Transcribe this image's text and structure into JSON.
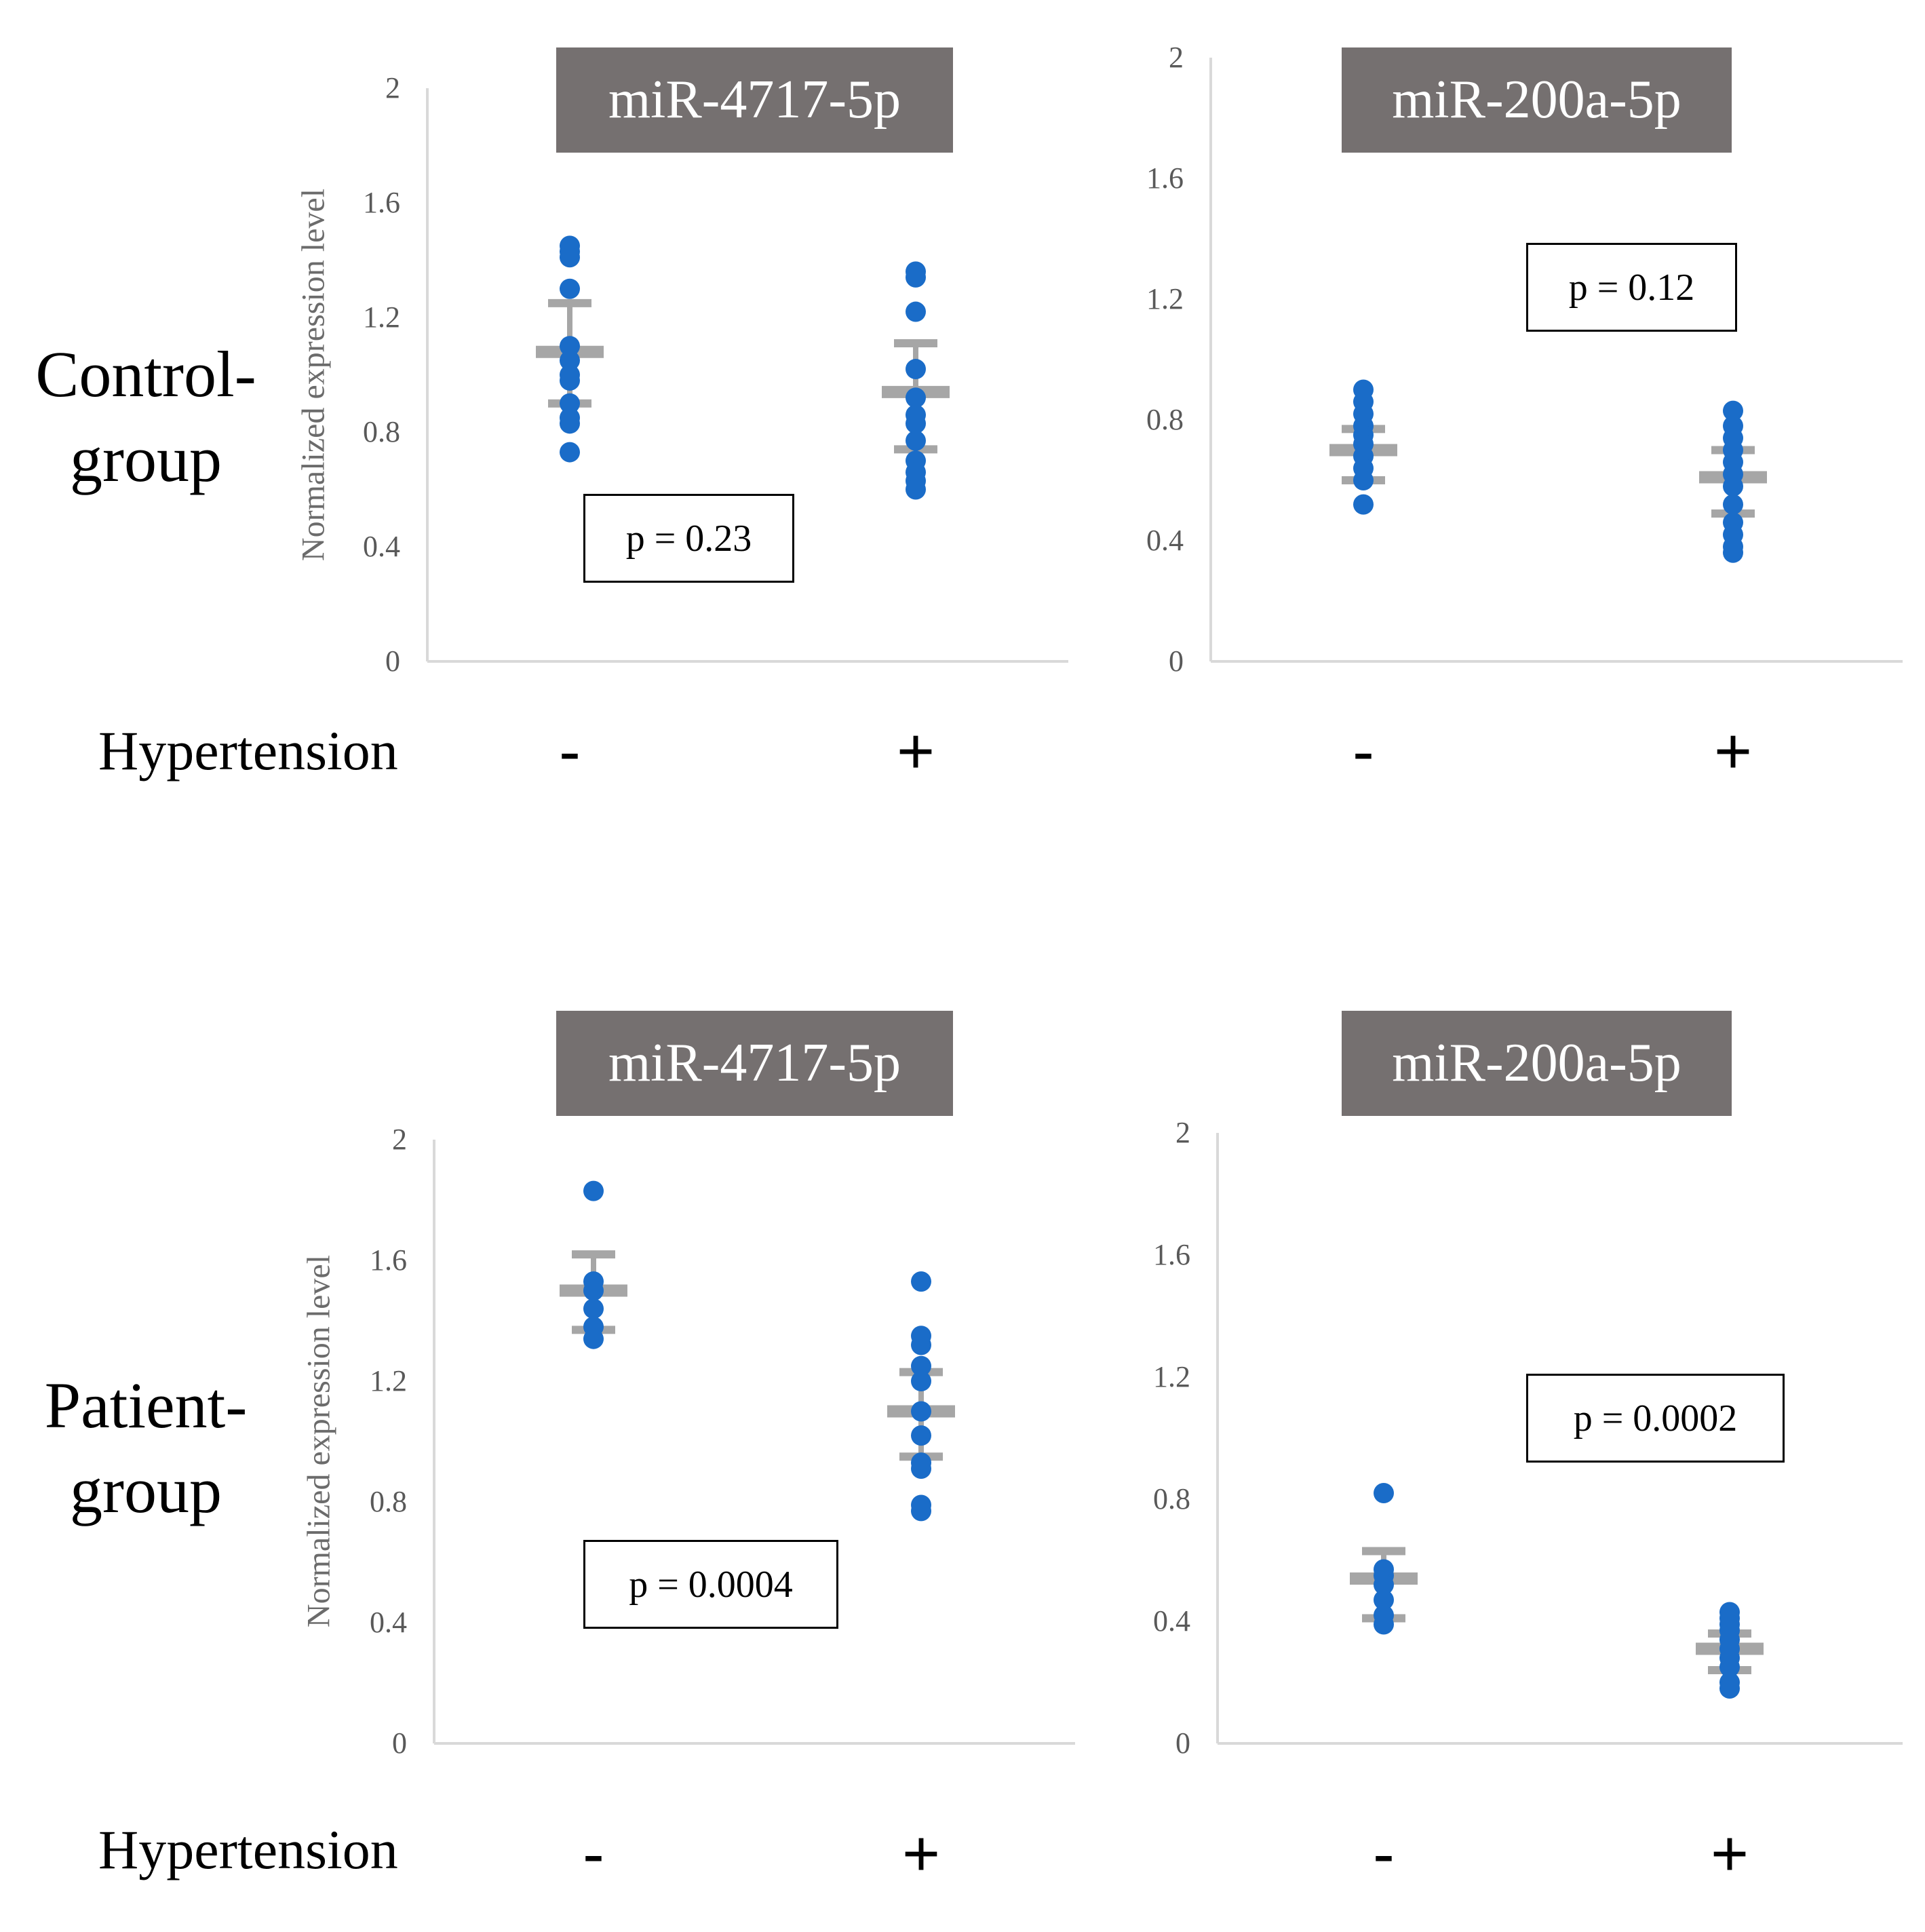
{
  "row_labels": [
    "Control-\ngroup",
    "Patient-\ngroup"
  ],
  "row_label_lines": [
    [
      "Control-",
      "group"
    ],
    [
      "Patient-",
      "group"
    ]
  ],
  "hypertension_label": "Hypertension",
  "colors": {
    "dot": "#1a6cc8",
    "mean": "#a6a6a6",
    "title_bg": "#757070",
    "axis": "#d9d9d9"
  },
  "chart_data": [
    {
      "type": "scatter",
      "title": "miR-4717-5p",
      "ylabel": "Normalized expression level",
      "ylim": [
        0,
        2
      ],
      "yticks": [
        "0",
        "0.4",
        "0.8",
        "1.2",
        "1.6",
        "2"
      ],
      "categories": [
        "-",
        "+"
      ],
      "p_value": "p = 0.23",
      "groups": [
        {
          "name": "-",
          "points": [
            1.45,
            1.43,
            1.41,
            1.3,
            1.1,
            1.05,
            1.0,
            0.98,
            0.9,
            0.85,
            0.83,
            0.73
          ],
          "mean": 1.08,
          "error_high": 1.25,
          "error_low": 0.9
        },
        {
          "name": "+",
          "points": [
            1.36,
            1.34,
            1.22,
            1.02,
            0.92,
            0.86,
            0.83,
            0.77,
            0.7,
            0.66,
            0.63,
            0.6
          ],
          "mean": 0.94,
          "error_high": 1.11,
          "error_low": 0.74
        }
      ]
    },
    {
      "type": "scatter",
      "title": "miR-200a-5p",
      "ylabel": "",
      "ylim": [
        0,
        2
      ],
      "yticks": [
        "0",
        "0.4",
        "0.8",
        "1.2",
        "1.6",
        "2"
      ],
      "categories": [
        "-",
        "+"
      ],
      "p_value": "p = 0.12",
      "groups": [
        {
          "name": "-",
          "points": [
            0.9,
            0.86,
            0.82,
            0.78,
            0.75,
            0.72,
            0.68,
            0.64,
            0.6,
            0.52
          ],
          "mean": 0.7,
          "error_high": 0.77,
          "error_low": 0.6
        },
        {
          "name": "+",
          "points": [
            0.83,
            0.78,
            0.74,
            0.7,
            0.66,
            0.62,
            0.58,
            0.52,
            0.46,
            0.42,
            0.38,
            0.36
          ],
          "mean": 0.61,
          "error_high": 0.7,
          "error_low": 0.49
        }
      ]
    },
    {
      "type": "scatter",
      "title": "miR-4717-5p",
      "ylabel": "Normalized expression level",
      "ylim": [
        0,
        2
      ],
      "yticks": [
        "0",
        "0.4",
        "0.8",
        "1.2",
        "1.6",
        "2"
      ],
      "categories": [
        "-",
        "+"
      ],
      "p_value": "p = 0.0004",
      "groups": [
        {
          "name": "-",
          "points": [
            1.83,
            1.53,
            1.5,
            1.44,
            1.38,
            1.34
          ],
          "mean": 1.5,
          "error_high": 1.62,
          "error_low": 1.37
        },
        {
          "name": "+",
          "points": [
            1.53,
            1.35,
            1.32,
            1.25,
            1.2,
            1.1,
            1.02,
            0.93,
            0.91,
            0.79,
            0.77
          ],
          "mean": 1.1,
          "error_high": 1.23,
          "error_low": 0.95
        }
      ]
    },
    {
      "type": "scatter",
      "title": "miR-200a-5p",
      "ylabel": "",
      "ylim": [
        0,
        2
      ],
      "yticks": [
        "0",
        "0.4",
        "0.8",
        "1.2",
        "1.6",
        "2"
      ],
      "categories": [
        "-",
        "+"
      ],
      "p_value": "p = 0.0002",
      "groups": [
        {
          "name": "-",
          "points": [
            0.82,
            0.57,
            0.55,
            0.52,
            0.47,
            0.42,
            0.39
          ],
          "mean": 0.54,
          "error_high": 0.63,
          "error_low": 0.41
        },
        {
          "name": "+",
          "points": [
            0.43,
            0.41,
            0.39,
            0.37,
            0.34,
            0.31,
            0.28,
            0.25,
            0.2,
            0.18
          ],
          "mean": 0.31,
          "error_high": 0.36,
          "error_low": 0.24
        }
      ]
    }
  ]
}
